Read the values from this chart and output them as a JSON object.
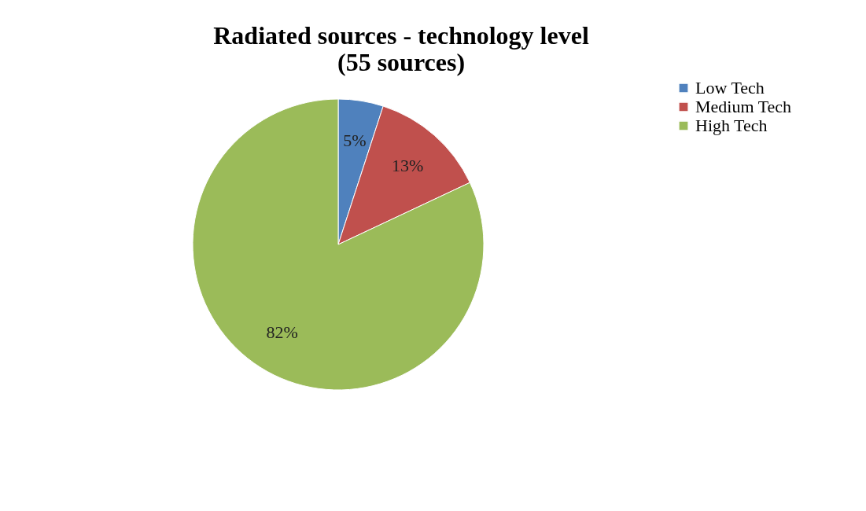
{
  "chart_data": {
    "type": "pie",
    "title": [
      "Radiated sources - technology level",
      "(55 sources)"
    ],
    "categories": [
      "Low Tech",
      "Medium Tech",
      "High Tech"
    ],
    "values": [
      5,
      13,
      82
    ],
    "colors": [
      "#4f81bd",
      "#c0504d",
      "#9bbb59"
    ],
    "value_labels": [
      "5%",
      "13%",
      "82%"
    ],
    "legend": "right"
  }
}
